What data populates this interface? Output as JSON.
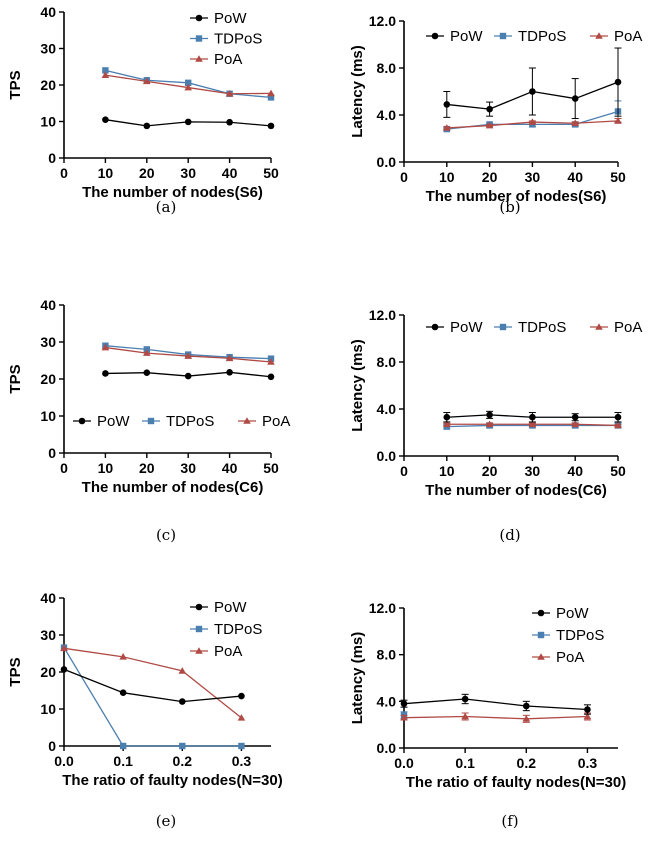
{
  "colors": {
    "PoW": "#000000",
    "TDPoS": "#4a7fb0",
    "PoA": "#b04a45"
  },
  "chart_data": [
    {
      "type": "line",
      "caption": "(a)",
      "xlabel": "The number of nodes(S6)",
      "ylabel": "TPS",
      "xlim": [
        0,
        50
      ],
      "ylim": [
        0,
        40
      ],
      "xticks": [
        0,
        10,
        20,
        30,
        40,
        50
      ],
      "xtick_labels": [
        "0",
        "10",
        "20",
        "30",
        "40",
        "50"
      ],
      "yticks": [
        0,
        10,
        20,
        30,
        40
      ],
      "ytick_labels": [
        "0",
        "10",
        "20",
        "30",
        "40"
      ],
      "legend": "right-vertical",
      "series": [
        {
          "name": "PoW",
          "x": [
            10,
            20,
            30,
            40,
            50
          ],
          "y": [
            10.5,
            8.8,
            9.9,
            9.8,
            8.8
          ]
        },
        {
          "name": "TDPoS",
          "x": [
            10,
            20,
            30,
            40,
            50
          ],
          "y": [
            24,
            21.3,
            20.6,
            17.6,
            16.6
          ]
        },
        {
          "name": "PoA",
          "x": [
            10,
            20,
            30,
            40,
            50
          ],
          "y": [
            22.7,
            21,
            19.3,
            17.6,
            17.7
          ]
        }
      ]
    },
    {
      "type": "line",
      "caption": "(b)",
      "xlabel": "The number of nodes(S6)",
      "ylabel": "Latency (ms)",
      "xlim": [
        0,
        50
      ],
      "ylim": [
        0,
        12
      ],
      "xticks": [
        0,
        10,
        20,
        30,
        40,
        50
      ],
      "xtick_labels": [
        "0",
        "10",
        "20",
        "30",
        "40",
        "50"
      ],
      "yticks": [
        0,
        4,
        8,
        12
      ],
      "ytick_labels": [
        "0.0",
        "4.0",
        "8.0",
        "12.0"
      ],
      "legend": "top-horizontal",
      "series": [
        {
          "name": "PoW",
          "x": [
            10,
            20,
            30,
            40,
            50
          ],
          "y": [
            4.9,
            4.5,
            6.0,
            5.4,
            6.8
          ],
          "err": [
            1.1,
            0.6,
            2.0,
            1.7,
            2.9
          ]
        },
        {
          "name": "TDPoS",
          "x": [
            10,
            20,
            30,
            40,
            50
          ],
          "y": [
            2.8,
            3.2,
            3.2,
            3.2,
            4.3
          ],
          "err": [
            0.1,
            0.1,
            0.2,
            0.2,
            0.9
          ]
        },
        {
          "name": "PoA",
          "x": [
            10,
            20,
            30,
            40,
            50
          ],
          "y": [
            2.9,
            3.1,
            3.4,
            3.3,
            3.5
          ],
          "err": [
            0.1,
            0.1,
            0.1,
            0.1,
            0.2
          ]
        }
      ]
    },
    {
      "type": "line",
      "caption": "(c)",
      "xlabel": "The number of nodes(C6)",
      "ylabel": "TPS",
      "xlim": [
        0,
        50
      ],
      "ylim": [
        0,
        40
      ],
      "xticks": [
        0,
        10,
        20,
        30,
        40,
        50
      ],
      "xtick_labels": [
        "0",
        "10",
        "20",
        "30",
        "40",
        "50"
      ],
      "yticks": [
        0,
        10,
        20,
        30,
        40
      ],
      "ytick_labels": [
        "0",
        "10",
        "20",
        "30",
        "40"
      ],
      "legend": "bottom-horizontal",
      "series": [
        {
          "name": "PoW",
          "x": [
            10,
            20,
            30,
            40,
            50
          ],
          "y": [
            21.5,
            21.7,
            20.8,
            21.8,
            20.6
          ]
        },
        {
          "name": "TDPoS",
          "x": [
            10,
            20,
            30,
            40,
            50
          ],
          "y": [
            29,
            28,
            26.6,
            25.9,
            25.5
          ]
        },
        {
          "name": "PoA",
          "x": [
            10,
            20,
            30,
            40,
            50
          ],
          "y": [
            28.5,
            27,
            26.2,
            25.6,
            24.6
          ]
        }
      ]
    },
    {
      "type": "line",
      "caption": "(d)",
      "xlabel": "The number of nodes(C6)",
      "ylabel": "Latency (ms)",
      "xlim": [
        0,
        50
      ],
      "ylim": [
        0,
        12
      ],
      "xticks": [
        0,
        10,
        20,
        30,
        40,
        50
      ],
      "xtick_labels": [
        "0",
        "10",
        "20",
        "30",
        "40",
        "50"
      ],
      "yticks": [
        0,
        4,
        8,
        12
      ],
      "ytick_labels": [
        "0.0",
        "4.0",
        "8.0",
        "12.0"
      ],
      "legend": "top-horizontal",
      "series": [
        {
          "name": "PoW",
          "x": [
            10,
            20,
            30,
            40,
            50
          ],
          "y": [
            3.3,
            3.5,
            3.3,
            3.3,
            3.3
          ],
          "err": [
            0.4,
            0.3,
            0.4,
            0.3,
            0.4
          ]
        },
        {
          "name": "TDPoS",
          "x": [
            10,
            20,
            30,
            40,
            50
          ],
          "y": [
            2.5,
            2.6,
            2.6,
            2.6,
            2.6
          ],
          "err": [
            0.2,
            0.2,
            0.2,
            0.2,
            0.2
          ]
        },
        {
          "name": "PoA",
          "x": [
            10,
            20,
            30,
            40,
            50
          ],
          "y": [
            2.7,
            2.7,
            2.7,
            2.7,
            2.6
          ],
          "err": [
            0.1,
            0.1,
            0.1,
            0.1,
            0.1
          ]
        }
      ]
    },
    {
      "type": "line",
      "caption": "(e)",
      "xlabel": "The ratio of faulty nodes(N=30)",
      "ylabel": "TPS",
      "xlim": [
        0,
        0.35
      ],
      "ylim": [
        0,
        40
      ],
      "xticks": [
        0,
        0.1,
        0.2,
        0.3
      ],
      "xtick_labels": [
        "0.0",
        "0.1",
        "0.2",
        "0.3"
      ],
      "yticks": [
        0,
        10,
        20,
        30,
        40
      ],
      "ytick_labels": [
        "0",
        "10",
        "20",
        "30",
        "40"
      ],
      "legend": "right-vertical",
      "series": [
        {
          "name": "PoW",
          "x": [
            0,
            0.1,
            0.2,
            0.3
          ],
          "y": [
            20.7,
            14.4,
            12,
            13.5
          ]
        },
        {
          "name": "TDPoS",
          "x": [
            0,
            0.1,
            0.2,
            0.3
          ],
          "y": [
            26.6,
            0,
            0,
            0
          ]
        },
        {
          "name": "PoA",
          "x": [
            0,
            0.1,
            0.2,
            0.3
          ],
          "y": [
            26.4,
            24.1,
            20.3,
            7.6
          ]
        }
      ]
    },
    {
      "type": "line",
      "caption": "(f)",
      "xlabel": "The ratio of faulty nodes(N=30)",
      "ylabel": "Latency (ms)",
      "xlim": [
        0,
        0.35
      ],
      "ylim": [
        0,
        12
      ],
      "xticks": [
        0,
        0.1,
        0.2,
        0.3
      ],
      "xtick_labels": [
        "0.0",
        "0.1",
        "0.2",
        "0.3"
      ],
      "yticks": [
        0,
        4,
        8,
        12
      ],
      "ytick_labels": [
        "0.0",
        "4.0",
        "8.0",
        "12.0"
      ],
      "legend": "right-vertical",
      "series": [
        {
          "name": "PoW",
          "x": [
            0,
            0.1,
            0.2,
            0.3
          ],
          "y": [
            3.8,
            4.2,
            3.6,
            3.3
          ],
          "err": [
            0.3,
            0.4,
            0.4,
            0.4
          ]
        },
        {
          "name": "TDPoS",
          "x": [
            0
          ],
          "y": [
            2.8
          ],
          "err": [
            0.3
          ]
        },
        {
          "name": "PoA",
          "x": [
            0,
            0.1,
            0.2,
            0.3
          ],
          "y": [
            2.6,
            2.7,
            2.5,
            2.7
          ],
          "err": [
            0.2,
            0.3,
            0.3,
            0.3
          ]
        }
      ]
    }
  ]
}
